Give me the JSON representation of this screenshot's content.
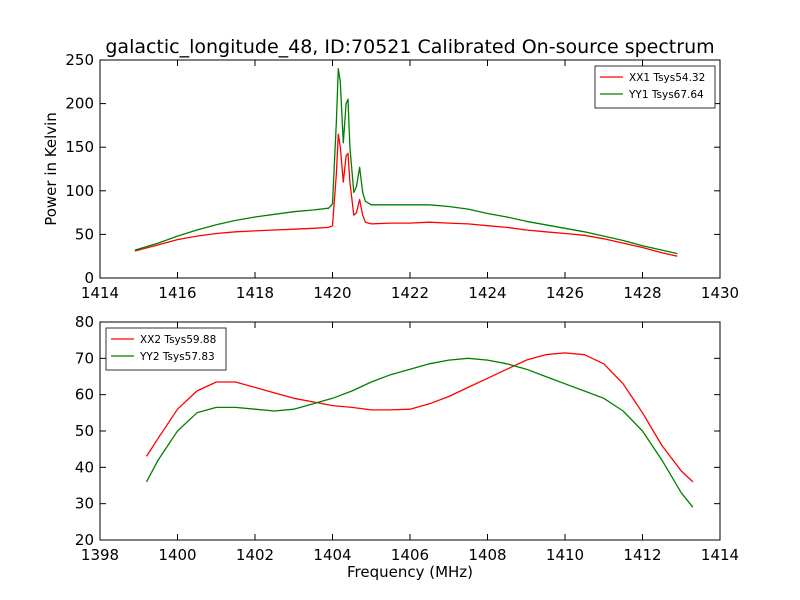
{
  "title": "galactic_longitude_48, ID:70521 Calibrated On-source spectrum",
  "chart_data": [
    {
      "type": "line",
      "ylabel": "Power in Kelvin",
      "xlabel": "",
      "xlim": [
        1414,
        1430
      ],
      "ylim": [
        0,
        250
      ],
      "xticks": [
        "1414",
        "1416",
        "1418",
        "1420",
        "1422",
        "1424",
        "1426",
        "1428",
        "1430"
      ],
      "yticks": [
        "0",
        "50",
        "100",
        "150",
        "200",
        "250"
      ],
      "grid": false,
      "legend": "top-right",
      "series": [
        {
          "name": "XX1 Tsys54.32",
          "color": "#ff0000",
          "x": [
            1414.9,
            1415.5,
            1416,
            1416.5,
            1417,
            1417.5,
            1418,
            1418.5,
            1419,
            1419.5,
            1419.9,
            1420.0,
            1420.1,
            1420.15,
            1420.2,
            1420.28,
            1420.35,
            1420.4,
            1420.45,
            1420.55,
            1420.62,
            1420.7,
            1420.78,
            1420.85,
            1421,
            1421.5,
            1422,
            1422.5,
            1423,
            1423.5,
            1424,
            1424.5,
            1425,
            1425.5,
            1426,
            1426.5,
            1427,
            1427.5,
            1428,
            1428.5,
            1428.9
          ],
          "y": [
            31,
            38,
            44,
            48,
            51,
            53,
            54,
            55,
            56,
            57,
            58,
            60,
            120,
            165,
            150,
            110,
            140,
            143,
            110,
            72,
            75,
            90,
            72,
            64,
            62,
            63,
            63,
            64,
            63,
            62,
            60,
            58,
            55,
            53,
            51,
            49,
            45,
            40,
            35,
            29,
            25
          ]
        },
        {
          "name": "YY1 Tsys67.64",
          "color": "#008000",
          "x": [
            1414.9,
            1415.5,
            1416,
            1416.5,
            1417,
            1417.5,
            1418,
            1418.5,
            1419,
            1419.5,
            1419.9,
            1420.0,
            1420.1,
            1420.15,
            1420.2,
            1420.28,
            1420.35,
            1420.4,
            1420.45,
            1420.55,
            1420.62,
            1420.7,
            1420.78,
            1420.85,
            1421,
            1421.5,
            1422,
            1422.5,
            1423,
            1423.5,
            1424,
            1424.5,
            1425,
            1425.5,
            1426,
            1426.5,
            1427,
            1427.5,
            1428,
            1428.5,
            1428.9
          ],
          "y": [
            32,
            40,
            48,
            55,
            61,
            66,
            70,
            73,
            76,
            78,
            80,
            85,
            180,
            240,
            225,
            155,
            200,
            205,
            150,
            98,
            105,
            127,
            98,
            88,
            84,
            84,
            84,
            84,
            82,
            79,
            74,
            70,
            65,
            61,
            57,
            53,
            48,
            43,
            37,
            32,
            28
          ]
        }
      ]
    },
    {
      "type": "line",
      "ylabel": "",
      "xlabel": "Frequency (MHz)",
      "xlim": [
        1398,
        1414
      ],
      "ylim": [
        20,
        80
      ],
      "xticks": [
        "1398",
        "1400",
        "1402",
        "1404",
        "1406",
        "1408",
        "1410",
        "1412",
        "1414"
      ],
      "yticks": [
        "20",
        "30",
        "40",
        "50",
        "60",
        "70",
        "80"
      ],
      "grid": false,
      "legend": "top-left",
      "series": [
        {
          "name": "XX2 Tsys59.88",
          "color": "#ff0000",
          "x": [
            1399.2,
            1399.5,
            1400,
            1400.5,
            1401,
            1401.5,
            1402,
            1402.5,
            1403,
            1403.5,
            1404,
            1404.5,
            1405,
            1405.5,
            1406,
            1406.5,
            1407,
            1407.5,
            1408,
            1408.5,
            1409,
            1409.5,
            1410,
            1410.5,
            1411,
            1411.5,
            1412,
            1412.5,
            1413,
            1413.3
          ],
          "y": [
            43,
            48,
            56,
            61,
            63.5,
            63.5,
            62,
            60.5,
            59,
            58,
            57,
            56.5,
            55.8,
            55.8,
            56,
            57.5,
            59.5,
            62,
            64.5,
            67,
            69.5,
            71,
            71.5,
            71,
            68.5,
            63,
            55,
            46,
            39,
            36
          ]
        },
        {
          "name": "YY2 Tsys57.83",
          "color": "#008000",
          "x": [
            1399.2,
            1399.5,
            1400,
            1400.5,
            1401,
            1401.5,
            1402,
            1402.5,
            1403,
            1403.5,
            1404,
            1404.5,
            1405,
            1405.5,
            1406,
            1406.5,
            1407,
            1407.5,
            1408,
            1408.5,
            1409,
            1409.5,
            1410,
            1410.5,
            1411,
            1411.5,
            1412,
            1412.5,
            1413,
            1413.3
          ],
          "y": [
            36,
            42,
            50,
            55,
            56.5,
            56.5,
            56,
            55.5,
            56,
            57.5,
            59,
            61,
            63.5,
            65.5,
            67,
            68.5,
            69.5,
            70,
            69.5,
            68.5,
            67,
            65,
            63,
            61,
            59,
            55.5,
            50,
            42,
            33,
            29
          ]
        }
      ]
    }
  ]
}
